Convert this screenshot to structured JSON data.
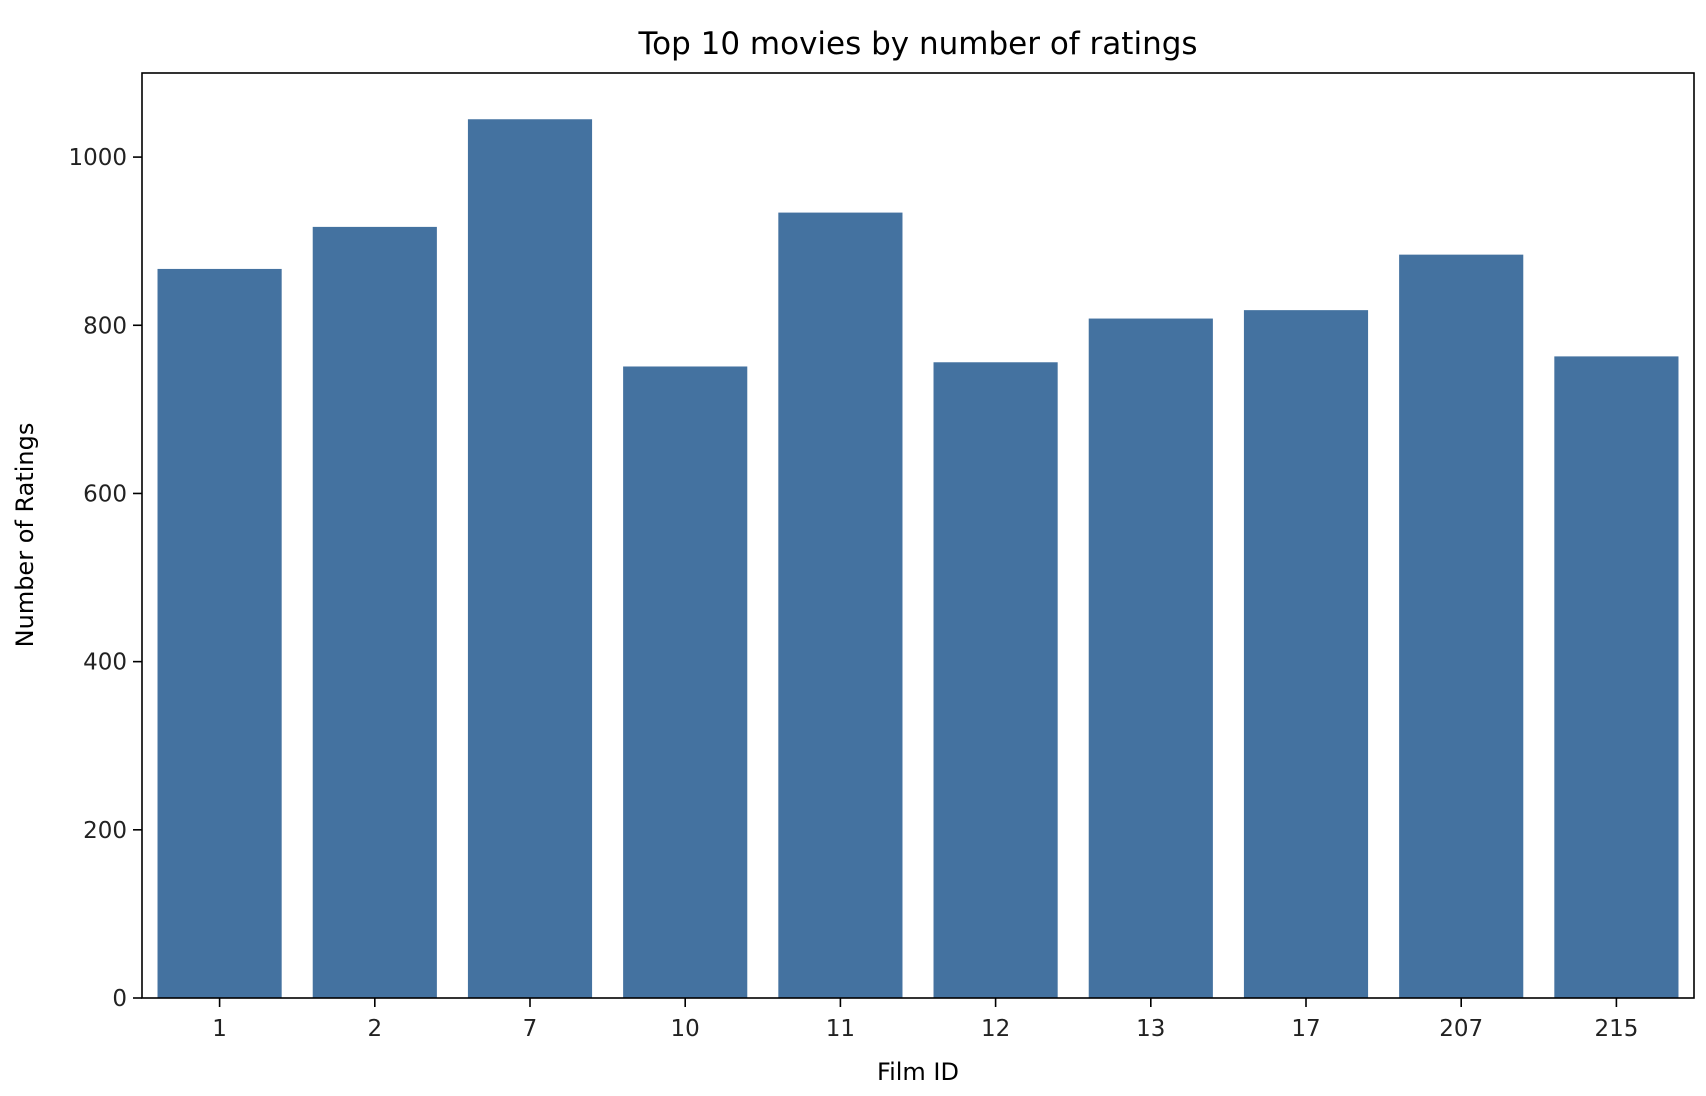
{
  "chart_data": {
    "type": "bar",
    "title": "Top 10 movies by number of ratings",
    "xlabel": "Film ID",
    "ylabel": "Number of Ratings",
    "categories": [
      "1",
      "2",
      "7",
      "10",
      "11",
      "12",
      "13",
      "17",
      "207",
      "215"
    ],
    "values": [
      867,
      917,
      1045,
      751,
      934,
      756,
      808,
      818,
      884,
      763
    ],
    "ylim": [
      0,
      1100
    ],
    "yticks": [
      0,
      200,
      400,
      600,
      800,
      1000
    ],
    "grid": false,
    "legend": "none",
    "bar_color": "#4472a0"
  }
}
